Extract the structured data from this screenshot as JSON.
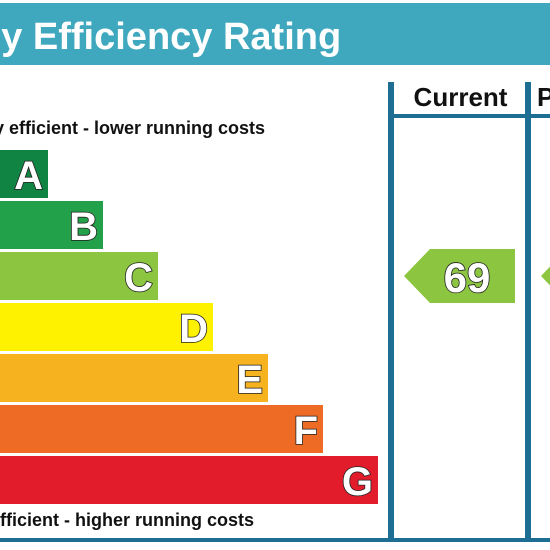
{
  "header": {
    "title": "gy Efficiency Rating"
  },
  "captions": {
    "top": "y efficient - lower running costs",
    "bottom": " efficient - higher running costs"
  },
  "columns": {
    "current": "Current",
    "potential": "P"
  },
  "chart_data": {
    "type": "bar",
    "categories": [
      "A",
      "B",
      "C",
      "D",
      "E",
      "F",
      "G"
    ],
    "values": [
      1,
      2,
      3,
      4,
      5,
      6,
      7
    ],
    "colors": [
      "#0f8443",
      "#22a14a",
      "#8cc540",
      "#fff200",
      "#f6b21f",
      "#ee6b25",
      "#e21c2a"
    ],
    "current_rating": {
      "value": "69",
      "band": "C",
      "color": "#8cc540"
    },
    "potential_rating": {
      "band": "C",
      "color": "#8cc540"
    }
  }
}
